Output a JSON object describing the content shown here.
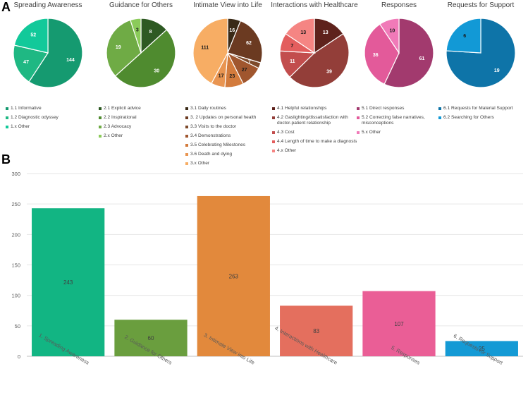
{
  "panel_a_letter": "A",
  "panel_b_letter": "B",
  "chart_data": [
    {
      "type": "pie",
      "title": "Spreading Awareness",
      "slices": [
        {
          "label": "1.1 Informative",
          "value": 144,
          "color": "#159a70"
        },
        {
          "label": "1.2 Diagnostic odyssey",
          "value": 47,
          "color": "#1fb883"
        },
        {
          "label": "1.x Other",
          "value": 52,
          "color": "#12c99a"
        }
      ]
    },
    {
      "type": "pie",
      "title": "Guidance for Others",
      "slices": [
        {
          "label": "2.1 Explicit advice",
          "value": 8,
          "color": "#2e5a23"
        },
        {
          "label": "2.2 Inspirational",
          "value": 30,
          "color": "#4f8b2f"
        },
        {
          "label": "2.3 Advocacy",
          "value": 19,
          "color": "#6fab45"
        },
        {
          "label": "2.x Other",
          "value": 3,
          "color": "#8bcb5a"
        }
      ]
    },
    {
      "type": "pie",
      "title": "Intimate View into Life",
      "slices": [
        {
          "label": "3.1 Daily routines",
          "value": 16,
          "color": "#3a2a17"
        },
        {
          "label": "3. 2 Updates on personal health",
          "value": 62,
          "color": "#6b3a21"
        },
        {
          "label": "3.3 Visits to the doctor",
          "value": 7,
          "color": "#7d4a2b"
        },
        {
          "label": "3.4 Demonstrations",
          "value": 27,
          "color": "#a0562e"
        },
        {
          "label": "3.5 Celebrating Milestones",
          "value": 23,
          "color": "#d37b3c"
        },
        {
          "label": "3.6 Death and dying",
          "value": 17,
          "color": "#e99551"
        },
        {
          "label": "3.x  Other",
          "value": 111,
          "color": "#f7ad64"
        }
      ]
    },
    {
      "type": "pie",
      "title": "Interactions with Healthcare",
      "slices": [
        {
          "label": "4.1 Helpful relationships",
          "value": 13,
          "color": "#5e221c"
        },
        {
          "label": "4.2 Gaslighting/dissatisfaction with doctor-patient relationship",
          "value": 39,
          "color": "#933e39"
        },
        {
          "label": "4.3 Cost",
          "value": 11,
          "color": "#c24d4d"
        },
        {
          "label": "4.4 Length of time to make a diagnosis",
          "value": 7,
          "color": "#e35e5e"
        },
        {
          "label": "4.x  Other",
          "value": 13,
          "color": "#f58583"
        }
      ]
    },
    {
      "type": "pie",
      "title": "Responses",
      "slices": [
        {
          "label": "5.1 Direct responses",
          "value": 61,
          "color": "#a23a6e"
        },
        {
          "label": "5.2 Correcting false narratives, misconceptions",
          "value": 36,
          "color": "#e35a9a"
        },
        {
          "label": "5.x  Other",
          "value": 10,
          "color": "#f07ab8"
        }
      ]
    },
    {
      "type": "pie",
      "title": "Requests for Support",
      "slices": [
        {
          "label": "6.1 Requests for Material Support",
          "value": 19,
          "color": "#0e74a8"
        },
        {
          "label": "6.2 Searching for Others",
          "value": 6,
          "color": "#1299d6"
        }
      ]
    },
    {
      "type": "bar",
      "title": "",
      "categories": [
        "1. Spreading Awareness",
        "2. Guidance for Others",
        "3. Intimate View into Life",
        "4. Interactions with Healthcare",
        "5. Responses",
        "6. Requests for Support"
      ],
      "values": [
        243,
        60,
        263,
        83,
        107,
        25
      ],
      "colors": [
        "#12b583",
        "#6a9e3e",
        "#e2893c",
        "#e46f5e",
        "#ea5e96",
        "#149ad5"
      ],
      "ylim": [
        0,
        300
      ],
      "yticks": [
        0,
        50,
        100,
        150,
        200,
        250,
        300
      ],
      "xlabel": "",
      "ylabel": ""
    }
  ]
}
